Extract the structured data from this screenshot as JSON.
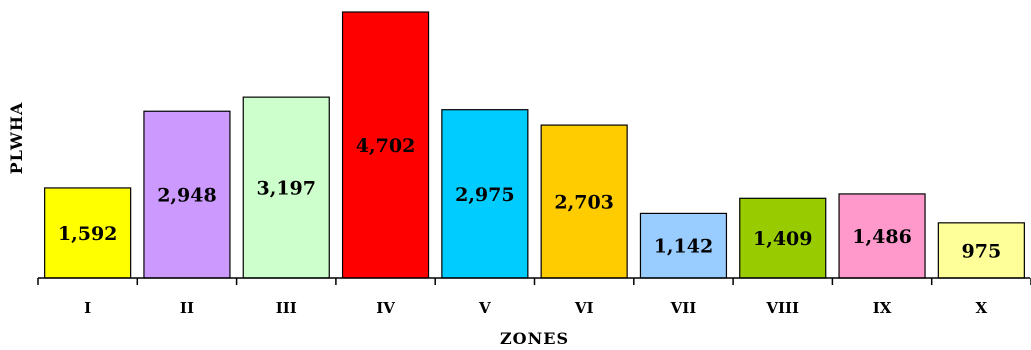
{
  "chart_data": {
    "type": "bar",
    "title": "",
    "xlabel": "ZONES",
    "ylabel": "PLWHA",
    "categories": [
      "I",
      "II",
      "III",
      "IV",
      "V",
      "VI",
      "VII",
      "VIII",
      "IX",
      "X"
    ],
    "values": [
      1592,
      2948,
      3197,
      4702,
      2975,
      2703,
      1142,
      1409,
      1486,
      975
    ],
    "value_labels": [
      "1,592",
      "2,948",
      "3,197",
      "4,702",
      "2,975",
      "2,703",
      "1,142",
      "1,409",
      "1,486",
      "975"
    ],
    "colors": [
      "#ffff00",
      "#cc99ff",
      "#ccffcc",
      "#ff0000",
      "#00ccff",
      "#ffcc00",
      "#99ccff",
      "#99cc00",
      "#ff99cc",
      "#ffff99"
    ],
    "ylim": [
      0,
      4702
    ],
    "grid": false,
    "legend": "none"
  }
}
